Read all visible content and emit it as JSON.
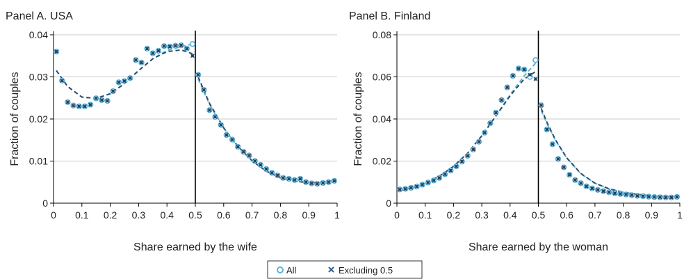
{
  "colors": {
    "all": "#5bb1d8",
    "excl_fill": "#2f5f87",
    "excl_fit": "#2b4f6b",
    "grid": "#c8c8c8",
    "threshold": "#000000"
  },
  "legend": {
    "items": [
      {
        "label": "All",
        "marker": "open-circle"
      },
      {
        "label": "Excluding 0.5",
        "marker": "x"
      }
    ],
    "placement": "bottom-center"
  },
  "chart_data": [
    {
      "type": "scatter",
      "title": "Panel A. USA",
      "xlabel": "Share earned by the wife",
      "ylabel": "Fraction of couples",
      "xlim": [
        0,
        1
      ],
      "ylim": [
        0,
        0.04
      ],
      "xticks": [
        "0",
        "0.1",
        "0.2",
        "0.3",
        "0.4",
        "0.5",
        "0.6",
        "0.7",
        "0.8",
        "0.9",
        "1"
      ],
      "yticks": [
        "0",
        "0.01",
        "0.02",
        "0.03",
        "0.04"
      ],
      "grid": "horizontal",
      "threshold_x": 0.5,
      "x": [
        0.01,
        0.03,
        0.05,
        0.07,
        0.09,
        0.11,
        0.13,
        0.15,
        0.17,
        0.19,
        0.21,
        0.23,
        0.25,
        0.27,
        0.29,
        0.31,
        0.33,
        0.35,
        0.37,
        0.39,
        0.41,
        0.43,
        0.45,
        0.47,
        0.49,
        0.51,
        0.53,
        0.55,
        0.57,
        0.59,
        0.61,
        0.63,
        0.65,
        0.67,
        0.69,
        0.71,
        0.73,
        0.75,
        0.77,
        0.79,
        0.81,
        0.83,
        0.85,
        0.87,
        0.89,
        0.91,
        0.93,
        0.95,
        0.97,
        0.99
      ],
      "series": [
        {
          "name": "All",
          "marker": "open-circle",
          "values": [
            0.036,
            0.0291,
            0.024,
            0.0232,
            0.023,
            0.023,
            0.0234,
            0.0249,
            0.0245,
            0.0243,
            0.0266,
            0.0287,
            0.029,
            0.0297,
            0.034,
            0.0334,
            0.0367,
            0.0356,
            0.0362,
            0.0373,
            0.0372,
            0.0374,
            0.0375,
            0.0367,
            0.0378,
            0.0305,
            0.0269,
            0.0221,
            0.0205,
            0.0186,
            0.0162,
            0.0151,
            0.0134,
            0.0122,
            0.0113,
            0.01,
            0.0091,
            0.0081,
            0.0072,
            0.0066,
            0.006,
            0.0058,
            0.0055,
            0.0058,
            0.005,
            0.0047,
            0.0046,
            0.0048,
            0.005,
            0.0053
          ]
        },
        {
          "name": "Excluding 0.5",
          "marker": "x",
          "values": [
            0.036,
            0.0291,
            0.024,
            0.0232,
            0.023,
            0.023,
            0.0234,
            0.0249,
            0.0245,
            0.0243,
            0.0266,
            0.0287,
            0.029,
            0.0297,
            0.034,
            0.0334,
            0.0367,
            0.0356,
            0.0362,
            0.0373,
            0.0372,
            0.0374,
            0.0375,
            0.0367,
            0.035,
            0.0305,
            0.0269,
            0.0221,
            0.0205,
            0.0186,
            0.0162,
            0.0151,
            0.0134,
            0.0122,
            0.0113,
            0.01,
            0.0091,
            0.0081,
            0.0072,
            0.0066,
            0.006,
            0.0058,
            0.0055,
            0.0058,
            0.005,
            0.0047,
            0.0046,
            0.0048,
            0.005,
            0.0053
          ]
        }
      ],
      "fits": [
        {
          "series": "All",
          "left": {
            "x": [
              0.01,
              0.05,
              0.1,
              0.15,
              0.2,
              0.25,
              0.3,
              0.35,
              0.4,
              0.45,
              0.49
            ],
            "y": [
              0.0315,
              0.0277,
              0.0252,
              0.0249,
              0.026,
              0.0284,
              0.0315,
              0.0343,
              0.0363,
              0.0372,
              0.0378
            ]
          },
          "right": {
            "x": [
              0.51,
              0.55,
              0.6,
              0.65,
              0.7,
              0.75,
              0.8,
              0.85,
              0.9,
              0.95,
              0.99
            ],
            "y": [
              0.0295,
              0.0235,
              0.0178,
              0.0134,
              0.01,
              0.0076,
              0.006,
              0.0052,
              0.0049,
              0.005,
              0.0054
            ]
          }
        },
        {
          "series": "Excluding 0.5",
          "left": {
            "x": [
              0.01,
              0.05,
              0.1,
              0.15,
              0.2,
              0.25,
              0.3,
              0.35,
              0.4,
              0.45,
              0.49
            ],
            "y": [
              0.0315,
              0.0277,
              0.0252,
              0.0249,
              0.026,
              0.0284,
              0.0315,
              0.0343,
              0.036,
              0.0364,
              0.0355
            ]
          },
          "right": {
            "x": [
              0.51,
              0.55,
              0.6,
              0.65,
              0.7,
              0.75,
              0.8,
              0.85,
              0.9,
              0.95,
              0.99
            ],
            "y": [
              0.03,
              0.0237,
              0.0179,
              0.0135,
              0.0101,
              0.0076,
              0.006,
              0.0052,
              0.0049,
              0.005,
              0.0054
            ]
          }
        }
      ]
    },
    {
      "type": "scatter",
      "title": "Panel B. Finland",
      "xlabel": "Share earned by the woman",
      "ylabel": "Fraction of couples",
      "xlim": [
        0,
        1
      ],
      "ylim": [
        0,
        0.08
      ],
      "xticks": [
        "0",
        "0.1",
        "0.2",
        "0.3",
        "0.4",
        "0.5",
        "0.6",
        "0.7",
        "0.8",
        "0.9",
        "1"
      ],
      "yticks": [
        "0",
        "0.02",
        "0.04",
        "0.06",
        "0.08"
      ],
      "grid": "horizontal",
      "threshold_x": 0.5,
      "x": [
        0.01,
        0.03,
        0.05,
        0.07,
        0.09,
        0.11,
        0.13,
        0.15,
        0.17,
        0.19,
        0.21,
        0.23,
        0.25,
        0.27,
        0.29,
        0.31,
        0.33,
        0.35,
        0.37,
        0.39,
        0.41,
        0.43,
        0.45,
        0.47,
        0.49,
        0.51,
        0.53,
        0.55,
        0.57,
        0.59,
        0.61,
        0.63,
        0.65,
        0.67,
        0.69,
        0.71,
        0.73,
        0.75,
        0.77,
        0.79,
        0.81,
        0.83,
        0.85,
        0.87,
        0.89,
        0.91,
        0.93,
        0.95,
        0.97,
        0.99
      ],
      "series": [
        {
          "name": "All",
          "marker": "open-circle",
          "values": [
            0.0065,
            0.0068,
            0.0073,
            0.0079,
            0.0088,
            0.0098,
            0.0108,
            0.012,
            0.0137,
            0.0155,
            0.0175,
            0.0198,
            0.0225,
            0.0255,
            0.0292,
            0.0335,
            0.038,
            0.043,
            0.049,
            0.055,
            0.0605,
            0.064,
            0.0635,
            0.06,
            0.068,
            0.0465,
            0.035,
            0.028,
            0.021,
            0.017,
            0.0135,
            0.011,
            0.0095,
            0.008,
            0.007,
            0.0063,
            0.0057,
            0.0052,
            0.0047,
            0.0044,
            0.0041,
            0.0038,
            0.0035,
            0.0033,
            0.0031,
            0.0029,
            0.0028,
            0.0027,
            0.0027,
            0.003
          ]
        },
        {
          "name": "Excluding 0.5",
          "marker": "x",
          "values": [
            0.0065,
            0.0068,
            0.0073,
            0.0079,
            0.0088,
            0.0098,
            0.0108,
            0.012,
            0.0137,
            0.0155,
            0.0175,
            0.0198,
            0.0225,
            0.0255,
            0.0292,
            0.0335,
            0.038,
            0.043,
            0.049,
            0.055,
            0.0605,
            0.064,
            0.0635,
            0.061,
            0.059,
            0.0465,
            0.035,
            0.028,
            0.021,
            0.017,
            0.0135,
            0.011,
            0.0095,
            0.008,
            0.007,
            0.0063,
            0.0057,
            0.0052,
            0.0047,
            0.0044,
            0.0041,
            0.0038,
            0.0035,
            0.0033,
            0.0031,
            0.0029,
            0.0028,
            0.0027,
            0.0027,
            0.003
          ]
        }
      ],
      "fits": [
        {
          "series": "All",
          "left": {
            "x": [
              0.01,
              0.05,
              0.1,
              0.15,
              0.2,
              0.25,
              0.3,
              0.35,
              0.4,
              0.45,
              0.49
            ],
            "y": [
              0.006,
              0.0072,
              0.0095,
              0.0128,
              0.0175,
              0.0238,
              0.032,
              0.0415,
              0.0515,
              0.0605,
              0.0665
            ]
          },
          "right": {
            "x": [
              0.51,
              0.53,
              0.56,
              0.6,
              0.65,
              0.7,
              0.75,
              0.8,
              0.85,
              0.9,
              0.95,
              0.99
            ],
            "y": [
              0.044,
              0.038,
              0.03,
              0.0215,
              0.014,
              0.0095,
              0.0068,
              0.0052,
              0.0042,
              0.0035,
              0.0031,
              0.0029
            ]
          }
        },
        {
          "series": "Excluding 0.5",
          "left": {
            "x": [
              0.01,
              0.05,
              0.1,
              0.15,
              0.2,
              0.25,
              0.3,
              0.35,
              0.4,
              0.45,
              0.49
            ],
            "y": [
              0.006,
              0.0072,
              0.0095,
              0.0128,
              0.0175,
              0.0238,
              0.032,
              0.0415,
              0.051,
              0.059,
              0.0625
            ]
          },
          "right": {
            "x": [
              0.51,
              0.53,
              0.56,
              0.6,
              0.65,
              0.7,
              0.75,
              0.8,
              0.85,
              0.9,
              0.95,
              0.99
            ],
            "y": [
              0.045,
              0.0385,
              0.0302,
              0.0216,
              0.0141,
              0.0095,
              0.0068,
              0.0052,
              0.0042,
              0.0035,
              0.0031,
              0.0029
            ]
          }
        }
      ]
    }
  ]
}
